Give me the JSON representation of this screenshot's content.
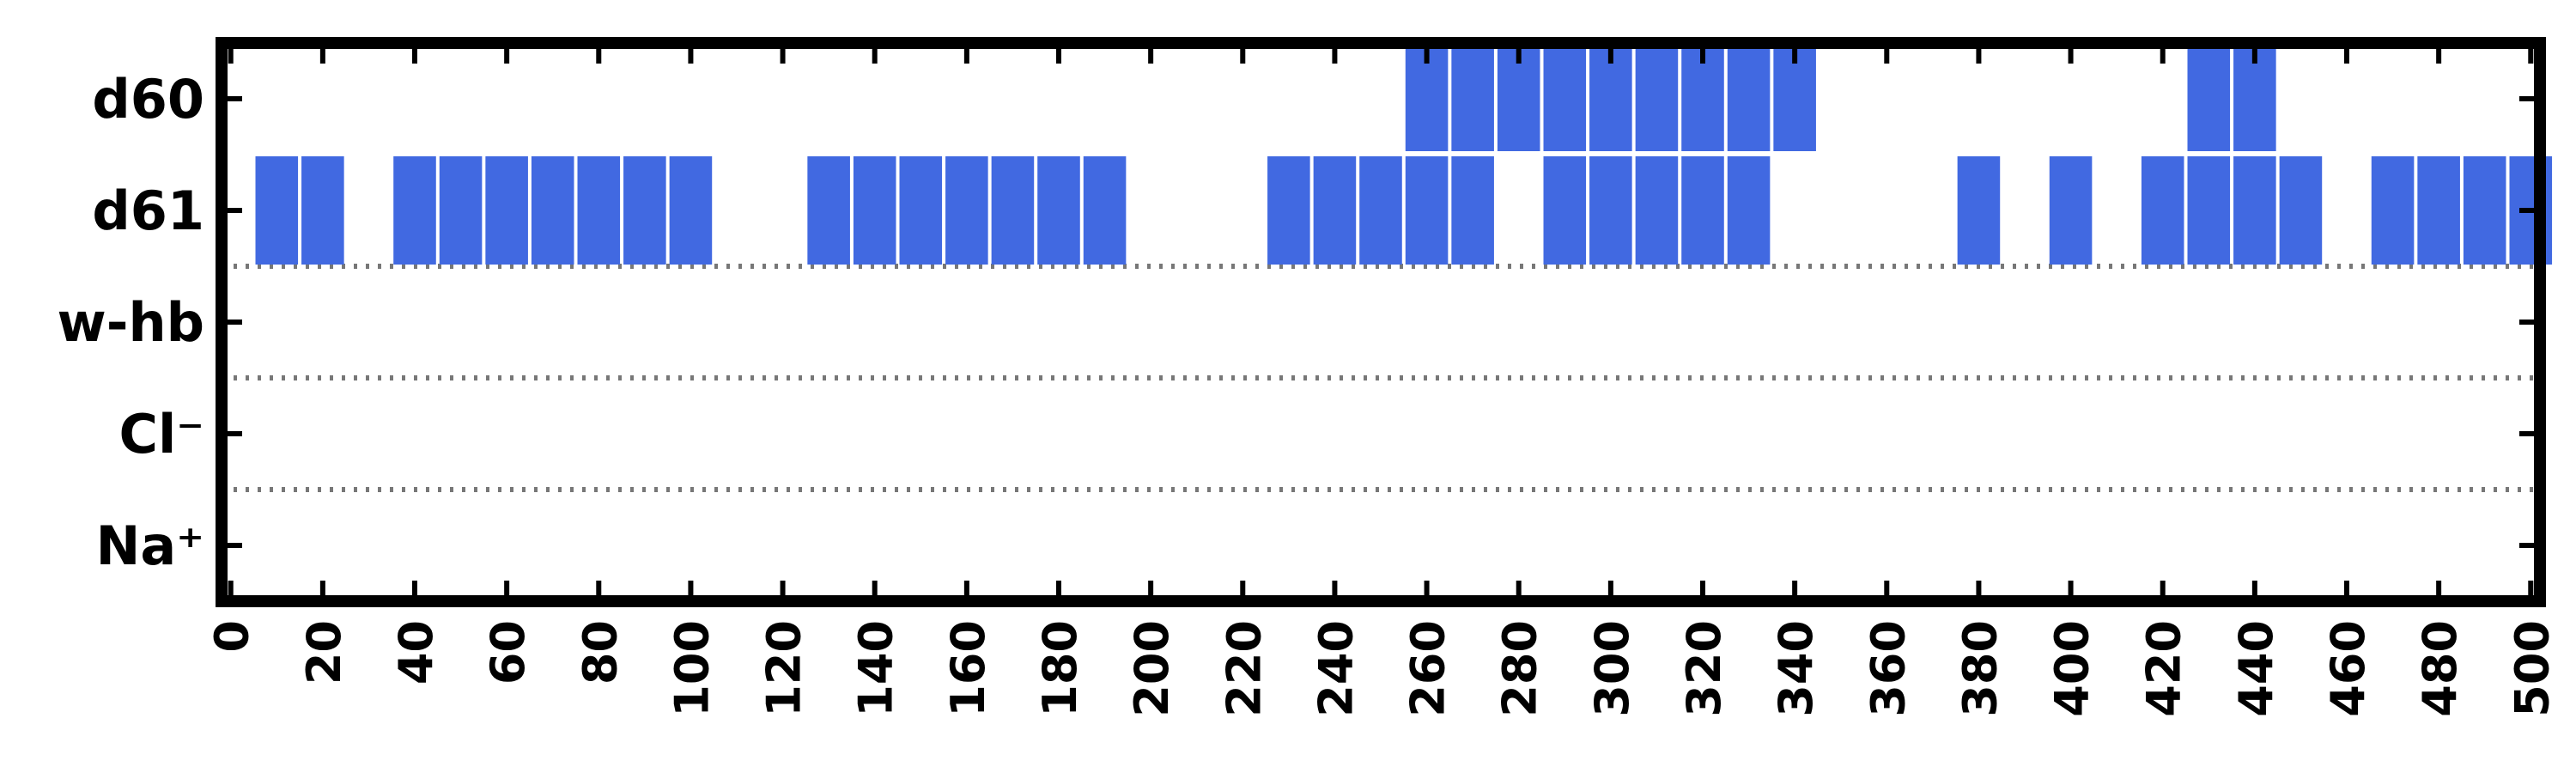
{
  "chart_data": {
    "type": "heatmap",
    "title": "",
    "xlabel": "",
    "ylabel": "",
    "xlim": [
      -2,
      502
    ],
    "x_ticks": [
      0,
      20,
      40,
      60,
      80,
      100,
      120,
      140,
      160,
      180,
      200,
      220,
      240,
      260,
      280,
      300,
      320,
      340,
      360,
      380,
      400,
      420,
      440,
      460,
      480,
      500
    ],
    "x_tick_labels": [
      "0",
      "20",
      "40",
      "60",
      "80",
      "100",
      "120",
      "140",
      "160",
      "180",
      "200",
      "220",
      "240",
      "260",
      "280",
      "300",
      "320",
      "340",
      "360",
      "380",
      "400",
      "420",
      "440",
      "460",
      "480",
      "500"
    ],
    "y_categories": [
      "d60",
      "d61",
      "w-hb",
      "Cl⁻",
      "Na⁺"
    ],
    "bin_width": 10,
    "bar_color": "#4169E1",
    "separator_style": "dotted",
    "separators_after_rows": [
      "d61",
      "w-hb",
      "Cl⁻"
    ],
    "series": [
      {
        "name": "d60",
        "bin_starts": [
          255,
          265,
          275,
          285,
          295,
          305,
          315,
          325,
          335,
          425,
          435
        ]
      },
      {
        "name": "d61",
        "bin_starts": [
          5,
          15,
          35,
          45,
          55,
          65,
          75,
          85,
          95,
          125,
          135,
          145,
          155,
          165,
          175,
          185,
          225,
          235,
          245,
          255,
          265,
          285,
          295,
          305,
          315,
          325,
          375,
          395,
          415,
          425,
          435,
          445,
          465,
          475,
          485,
          495
        ]
      },
      {
        "name": "w-hb",
        "bin_starts": []
      },
      {
        "name": "Cl⁻",
        "bin_starts": []
      },
      {
        "name": "Na⁺",
        "bin_starts": []
      }
    ]
  }
}
